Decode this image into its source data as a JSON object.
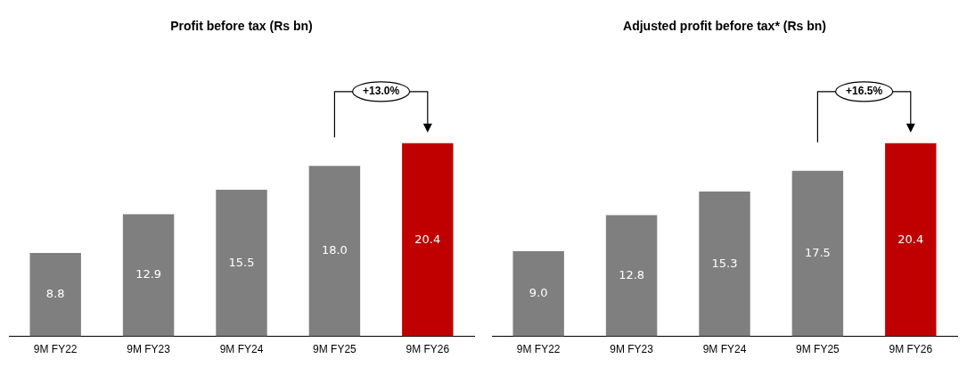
{
  "chart_data": [
    {
      "type": "bar",
      "title": "Profit before tax (Rs bn)",
      "categories": [
        "9M FY22",
        "9M FY23",
        "9M FY24",
        "9M FY25",
        "9M FY26"
      ],
      "values": [
        8.8,
        12.9,
        15.5,
        18.0,
        20.4
      ],
      "value_labels": [
        "8.8",
        "12.9",
        "15.5",
        "18.0",
        "20.4"
      ],
      "colors": [
        "#7f7f7f",
        "#7f7f7f",
        "#7f7f7f",
        "#7f7f7f",
        "#c00000"
      ],
      "grid": false,
      "annotations": [
        "+13.0%"
      ]
    },
    {
      "type": "bar",
      "title": "Adjusted profit before tax* (Rs bn)",
      "categories": [
        "9M FY22",
        "9M FY23",
        "9M FY24",
        "9M FY25",
        "9M FY26"
      ],
      "values": [
        9.0,
        12.8,
        15.3,
        17.5,
        20.4
      ],
      "value_labels": [
        "9.0",
        "12.8",
        "15.3",
        "17.5",
        "20.4"
      ],
      "colors": [
        "#7f7f7f",
        "#7f7f7f",
        "#7f7f7f",
        "#7f7f7f",
        "#c00000"
      ],
      "grid": false,
      "annotations": [
        "+16.5%"
      ]
    }
  ]
}
